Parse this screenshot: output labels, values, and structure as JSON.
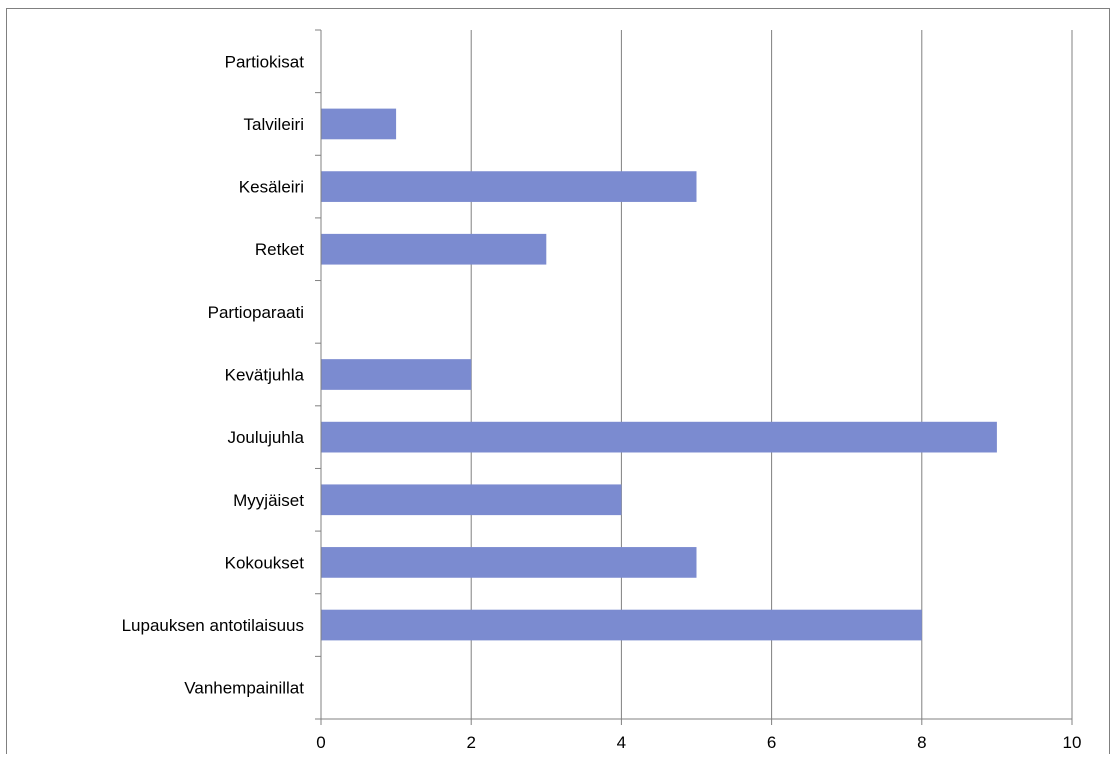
{
  "chart_data": {
    "type": "bar",
    "orientation": "horizontal",
    "categories": [
      "Partiokisat",
      "Talvileiri",
      "Kesäleiri",
      "Retket",
      "Partioparaati",
      "Kevätjuhla",
      "Joulujuhla",
      "Myyjäiset",
      "Kokoukset",
      "Lupauksen antotilaisuus",
      "Vanhempainillat"
    ],
    "values": [
      0,
      1,
      5,
      3,
      0,
      2,
      9,
      4,
      5,
      8,
      0
    ],
    "xlim": [
      0,
      10
    ],
    "xticks": [
      0,
      2,
      4,
      6,
      8,
      10
    ],
    "title": "",
    "xlabel": "",
    "ylabel": "",
    "grid": "vertical",
    "legend": "none",
    "bar_color": "#7b8bd0",
    "grid_color": "#808080"
  }
}
